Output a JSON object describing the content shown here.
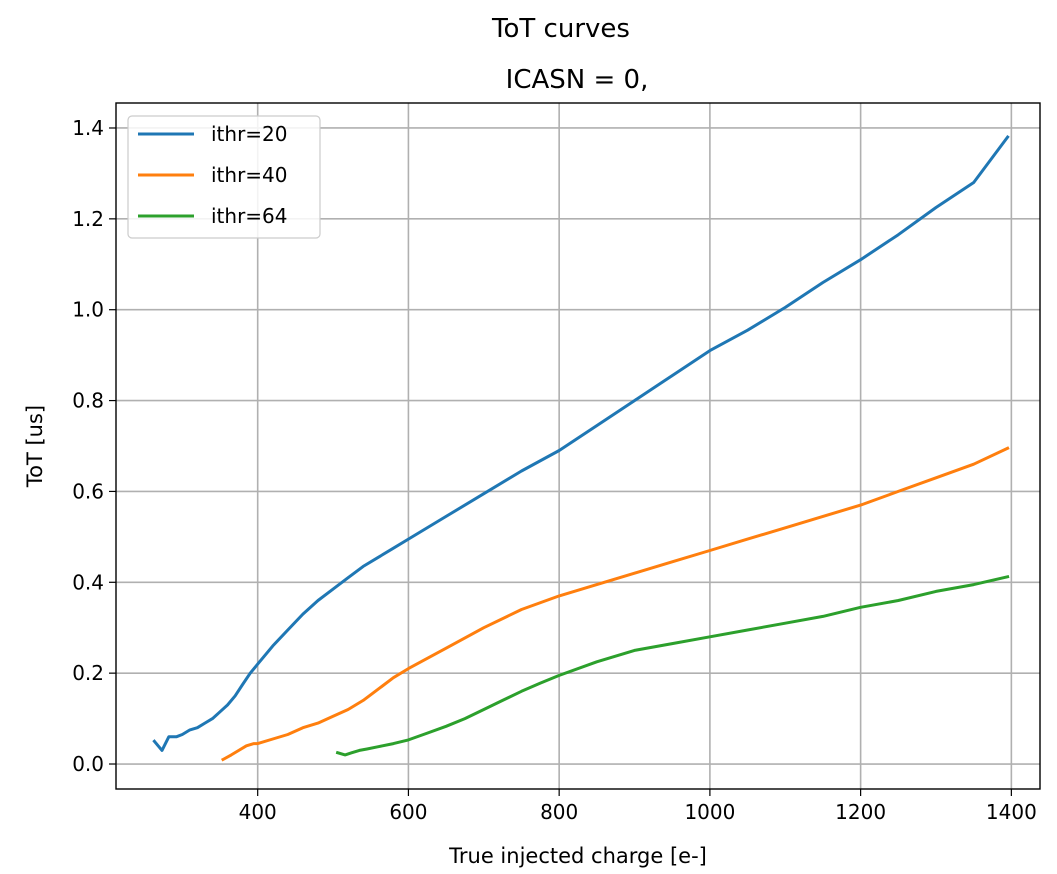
{
  "chart_data": {
    "type": "line",
    "suptitle": "ToT curves",
    "title": "ICASN = 0,",
    "xlabel": "True injected charge [e-]",
    "ylabel": "ToT [us]",
    "xlim": [
      212,
      1438
    ],
    "ylim": [
      -0.055,
      1.455
    ],
    "xticks": [
      400,
      600,
      800,
      1000,
      1200,
      1400
    ],
    "yticks": [
      0.0,
      0.2,
      0.4,
      0.6,
      0.8,
      1.0,
      1.2,
      1.4
    ],
    "xtick_labels": [
      "400",
      "600",
      "800",
      "1000",
      "1200",
      "1400"
    ],
    "ytick_labels": [
      "0.0",
      "0.2",
      "0.4",
      "0.6",
      "0.8",
      "1.0",
      "1.2",
      "1.4"
    ],
    "grid": true,
    "legend_position": "top-left",
    "series": [
      {
        "name": "ithr=20",
        "color": "#1f77b4",
        "x": [
          263,
          273,
          282,
          292,
          300,
          310,
          320,
          330,
          340,
          350,
          360,
          370,
          380,
          390,
          400,
          420,
          440,
          460,
          480,
          500,
          520,
          540,
          560,
          580,
          600,
          650,
          700,
          750,
          800,
          850,
          900,
          950,
          1000,
          1050,
          1100,
          1150,
          1200,
          1250,
          1300,
          1350,
          1395
        ],
        "y": [
          0.05,
          0.03,
          0.06,
          0.06,
          0.065,
          0.075,
          0.08,
          0.09,
          0.1,
          0.115,
          0.13,
          0.15,
          0.175,
          0.2,
          0.22,
          0.26,
          0.295,
          0.33,
          0.36,
          0.385,
          0.41,
          0.435,
          0.455,
          0.475,
          0.495,
          0.545,
          0.595,
          0.645,
          0.69,
          0.745,
          0.8,
          0.855,
          0.91,
          0.955,
          1.005,
          1.06,
          1.11,
          1.165,
          1.225,
          1.28,
          1.38
        ]
      },
      {
        "name": "ithr=40",
        "color": "#ff7f0e",
        "x": [
          354,
          365,
          375,
          385,
          395,
          400,
          420,
          440,
          460,
          480,
          500,
          520,
          540,
          560,
          580,
          600,
          650,
          700,
          750,
          800,
          850,
          900,
          950,
          1000,
          1050,
          1100,
          1150,
          1200,
          1250,
          1300,
          1350,
          1395
        ],
        "y": [
          0.01,
          0.02,
          0.03,
          0.04,
          0.045,
          0.045,
          0.055,
          0.065,
          0.08,
          0.09,
          0.105,
          0.12,
          0.14,
          0.165,
          0.19,
          0.21,
          0.255,
          0.3,
          0.34,
          0.37,
          0.395,
          0.42,
          0.445,
          0.47,
          0.495,
          0.52,
          0.545,
          0.57,
          0.6,
          0.63,
          0.66,
          0.695
        ]
      },
      {
        "name": "ithr=64",
        "color": "#2ca02c",
        "x": [
          506,
          516,
          525,
          535,
          545,
          560,
          580,
          600,
          625,
          650,
          675,
          700,
          725,
          750,
          775,
          800,
          850,
          900,
          950,
          1000,
          1050,
          1100,
          1150,
          1200,
          1250,
          1300,
          1350,
          1395
        ],
        "y": [
          0.025,
          0.02,
          0.025,
          0.03,
          0.033,
          0.038,
          0.045,
          0.053,
          0.068,
          0.083,
          0.1,
          0.12,
          0.14,
          0.16,
          0.178,
          0.195,
          0.225,
          0.25,
          0.265,
          0.28,
          0.295,
          0.31,
          0.325,
          0.345,
          0.36,
          0.38,
          0.395,
          0.412
        ]
      }
    ]
  }
}
